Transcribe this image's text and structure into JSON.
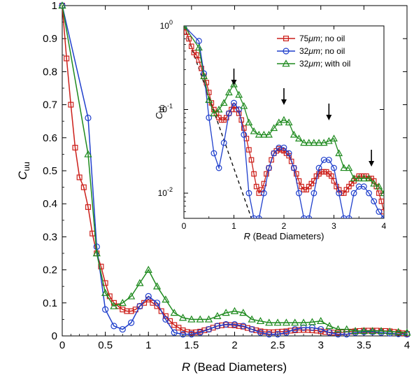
{
  "chart_data": [
    {
      "type": "line",
      "xlabel": "R (Bead Diameters)",
      "ylabel": "Cuu",
      "xlim": [
        0,
        4
      ],
      "ylim": [
        0,
        1
      ],
      "xticks": [
        "0",
        "0.5",
        "1",
        "1.5",
        "2",
        "2.5",
        "3",
        "3.5",
        "4"
      ],
      "yticks": [
        "0",
        "0.1",
        "0.2",
        "0.3",
        "0.4",
        "0.5",
        "0.6",
        "0.7",
        "0.8",
        "0.9",
        "1"
      ],
      "grid": false,
      "series": [
        {
          "name": "75μm; no oil",
          "color": "#cc1f1a",
          "marker": "square",
          "x": [
            0.0,
            0.05,
            0.1,
            0.15,
            0.2,
            0.25,
            0.3,
            0.35,
            0.4,
            0.45,
            0.5,
            0.55,
            0.6,
            0.65,
            0.7,
            0.75,
            0.8,
            0.85,
            0.9,
            0.95,
            1.0,
            1.05,
            1.1,
            1.15,
            1.2,
            1.25,
            1.3,
            1.35,
            1.4,
            1.45,
            1.5,
            1.55,
            1.6,
            1.65,
            1.7,
            1.75,
            1.8,
            1.85,
            1.9,
            1.95,
            2.0,
            2.05,
            2.1,
            2.15,
            2.2,
            2.25,
            2.3,
            2.35,
            2.4,
            2.45,
            2.5,
            2.55,
            2.6,
            2.65,
            2.7,
            2.75,
            2.8,
            2.85,
            2.9,
            2.95,
            3.0,
            3.05,
            3.1,
            3.15,
            3.2,
            3.25,
            3.3,
            3.35,
            3.4,
            3.45,
            3.5,
            3.55,
            3.6,
            3.65,
            3.7,
            3.75,
            3.8,
            3.85,
            3.9,
            3.95,
            4.0
          ],
          "y": [
            1.0,
            0.84,
            0.7,
            0.57,
            0.48,
            0.45,
            0.39,
            0.31,
            0.25,
            0.21,
            0.16,
            0.12,
            0.1,
            0.09,
            0.08,
            0.075,
            0.075,
            0.08,
            0.09,
            0.1,
            0.11,
            0.1,
            0.09,
            0.075,
            0.06,
            0.045,
            0.033,
            0.025,
            0.017,
            0.012,
            0.01,
            0.011,
            0.013,
            0.017,
            0.02,
            0.025,
            0.03,
            0.032,
            0.034,
            0.033,
            0.032,
            0.03,
            0.028,
            0.024,
            0.02,
            0.017,
            0.014,
            0.012,
            0.011,
            0.011,
            0.012,
            0.013,
            0.014,
            0.016,
            0.017,
            0.018,
            0.018,
            0.018,
            0.017,
            0.016,
            0.014,
            0.012,
            0.011,
            0.01,
            0.01,
            0.011,
            0.012,
            0.013,
            0.014,
            0.015,
            0.016,
            0.016,
            0.016,
            0.016,
            0.015,
            0.015,
            0.014,
            0.012,
            0.01,
            0.008,
            0.006
          ]
        },
        {
          "name": "32μm; no oil",
          "color": "#1f3fcc",
          "marker": "circle",
          "x": [
            0.0,
            0.3,
            0.4,
            0.5,
            0.6,
            0.7,
            0.8,
            0.9,
            1.0,
            1.1,
            1.2,
            1.3,
            1.4,
            1.5,
            1.6,
            1.7,
            1.8,
            1.9,
            2.0,
            2.1,
            2.2,
            2.3,
            2.4,
            2.5,
            2.6,
            2.7,
            2.8,
            2.9,
            3.0,
            3.1,
            3.2,
            3.3,
            3.4,
            3.5,
            3.6,
            3.7,
            3.8,
            3.9,
            4.0
          ],
          "y": [
            1.0,
            0.66,
            0.27,
            0.08,
            0.03,
            0.02,
            0.04,
            0.09,
            0.12,
            0.1,
            0.05,
            0.01,
            0.005,
            0.005,
            0.01,
            0.02,
            0.03,
            0.035,
            0.035,
            0.03,
            0.02,
            0.01,
            0.005,
            0.005,
            0.01,
            0.02,
            0.025,
            0.025,
            0.02,
            0.01,
            0.005,
            0.005,
            0.01,
            0.012,
            0.012,
            0.01,
            0.008,
            0.006,
            0.005
          ]
        },
        {
          "name": "32μm; with oil",
          "color": "#1e8a1e",
          "marker": "triangle",
          "x": [
            0.0,
            0.3,
            0.4,
            0.5,
            0.6,
            0.7,
            0.8,
            0.9,
            1.0,
            1.1,
            1.2,
            1.3,
            1.4,
            1.5,
            1.6,
            1.7,
            1.8,
            1.9,
            2.0,
            2.1,
            2.2,
            2.3,
            2.4,
            2.5,
            2.6,
            2.7,
            2.8,
            2.9,
            3.0,
            3.1,
            3.2,
            3.3,
            3.4,
            3.5,
            3.6,
            3.7,
            3.8,
            3.9,
            4.0
          ],
          "y": [
            1.0,
            0.55,
            0.25,
            0.13,
            0.09,
            0.1,
            0.12,
            0.16,
            0.2,
            0.15,
            0.11,
            0.07,
            0.055,
            0.05,
            0.05,
            0.05,
            0.06,
            0.07,
            0.075,
            0.07,
            0.05,
            0.045,
            0.04,
            0.04,
            0.04,
            0.04,
            0.04,
            0.042,
            0.045,
            0.03,
            0.02,
            0.02,
            0.015,
            0.015,
            0.015,
            0.015,
            0.013,
            0.012,
            0.01
          ]
        }
      ]
    },
    {
      "type": "line",
      "inset": true,
      "xlabel": "R (Bead Diameters)",
      "ylabel": "Cuu",
      "yscale": "log",
      "xlim": [
        0,
        4
      ],
      "ylim": [
        0.005,
        1
      ],
      "xticks": [
        "0",
        "1",
        "2",
        "3",
        "4"
      ],
      "yticks": [
        {
          "base": "10",
          "exp": "-2"
        },
        {
          "base": "10",
          "exp": "-1"
        },
        {
          "base": "10",
          "exp": "0"
        }
      ],
      "legend": "top-right",
      "series_ref": "same as main chart series",
      "dashed_line": {
        "style": "dashed",
        "color": "#000000",
        "x": [
          0,
          1.35
        ],
        "y": [
          1.0,
          0.005
        ]
      },
      "arrows_at_x": [
        1.0,
        2.0,
        2.9,
        3.75
      ]
    }
  ]
}
